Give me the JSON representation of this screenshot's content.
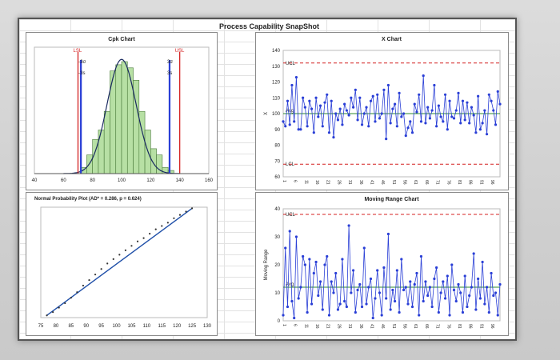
{
  "main_title": "Process Capability SnapShot",
  "colors": {
    "blue": "#2a3fd6",
    "green": "#2e8b2e",
    "red": "#d42020",
    "bar": "#b7e0a4",
    "avg": "#2e8b2e"
  },
  "chart_data": [
    {
      "type": "bar",
      "title": "Cpk Chart",
      "annotations": {
        "lsl": "LSL",
        "usl": "USL",
        "minus3sigma": "-3σ",
        "plus3sigma": "3σ",
        "minus3s": "-3s",
        "plus3s": "3s"
      },
      "xlim": [
        40,
        160
      ],
      "xticks": [
        "40",
        "60",
        "80",
        "100",
        "120",
        "140",
        "160"
      ],
      "lsl": 70,
      "usl": 140,
      "minus3sigma": 72,
      "plus3sigma": 133,
      "bin_edges": [
        72,
        76,
        80,
        84,
        88,
        92,
        96,
        100,
        104,
        108,
        112,
        116,
        120,
        124,
        128,
        132,
        136
      ],
      "bin_values": [
        2,
        6,
        11,
        14,
        20,
        33,
        35,
        36,
        34,
        30,
        20,
        14,
        8,
        6,
        2,
        1
      ],
      "normal_curve": {
        "mean": 100,
        "sd": 10
      }
    },
    {
      "type": "line",
      "title": "X Chart",
      "ylabel": "X",
      "ylim": [
        60,
        140
      ],
      "yticks": [
        "60",
        "70",
        "80",
        "90",
        "100",
        "110",
        "120",
        "130",
        "140"
      ],
      "xticks": [
        "1",
        "6",
        "11",
        "16",
        "21",
        "26",
        "31",
        "36",
        "41",
        "46",
        "51",
        "56",
        "61",
        "66",
        "71",
        "76",
        "81",
        "86",
        "91",
        "96"
      ],
      "ucl": 132,
      "avg": 100,
      "lcl": 68,
      "ucl_label": "UCL",
      "avg_label": "Avg",
      "lcl_label": "LCL",
      "values": [
        95,
        92,
        108,
        93,
        118,
        95,
        123,
        90,
        90,
        110,
        104,
        92,
        108,
        103,
        88,
        110,
        98,
        105,
        92,
        107,
        112,
        88,
        108,
        85,
        100,
        96,
        103,
        93,
        106,
        102,
        99,
        110,
        104,
        115,
        96,
        110,
        93,
        100,
        104,
        92,
        108,
        111,
        95,
        112,
        97,
        100,
        115,
        84,
        118,
        94,
        103,
        106,
        92,
        113,
        98,
        100,
        86,
        91,
        95,
        88,
        106,
        101,
        112,
        95,
        124,
        94,
        104,
        97,
        102,
        118,
        92,
        105,
        98,
        95,
        112,
        90,
        108,
        98,
        97,
        102,
        113,
        94,
        108,
        96,
        107,
        94,
        104,
        99,
        88,
        111,
        90,
        94,
        102,
        87,
        112,
        108,
        102,
        93,
        114,
        106
      ]
    },
    {
      "type": "line",
      "title": "Normal Probability Plot (AD* = 0.286, p = 0.624)",
      "xticks": [
        "75",
        "80",
        "85",
        "90",
        "95",
        "100",
        "105",
        "110",
        "115",
        "120",
        "125",
        "130"
      ],
      "x": [
        77,
        79,
        81,
        83,
        85,
        87,
        89,
        91,
        93,
        95,
        97,
        99,
        101,
        103,
        105,
        107,
        109,
        111,
        113,
        115,
        117,
        119,
        121,
        123,
        125
      ],
      "y": [
        0.02,
        0.05,
        0.09,
        0.13,
        0.18,
        0.23,
        0.29,
        0.34,
        0.39,
        0.44,
        0.49,
        0.53,
        0.57,
        0.61,
        0.65,
        0.69,
        0.72,
        0.76,
        0.8,
        0.83,
        0.86,
        0.9,
        0.93,
        0.96,
        0.99
      ]
    },
    {
      "type": "line",
      "title": "Moving Range Chart",
      "ylabel": "Moving Range",
      "ylim": [
        0,
        40
      ],
      "yticks": [
        "0",
        "10",
        "20",
        "30",
        "40"
      ],
      "xticks": [
        "1",
        "6",
        "11",
        "16",
        "21",
        "26",
        "31",
        "36",
        "41",
        "46",
        "51",
        "56",
        "61",
        "66",
        "71",
        "76",
        "81",
        "86",
        "91",
        "96"
      ],
      "ucl": 38,
      "avg": 12,
      "ucl_label": "UCL",
      "avg_label": "Avg",
      "values": [
        2,
        26,
        5,
        32,
        7,
        1,
        30,
        8,
        12,
        23,
        20,
        3,
        22,
        6,
        17,
        21,
        9,
        14,
        4,
        20,
        23,
        2,
        14,
        10,
        17,
        4,
        6,
        22,
        7,
        5,
        34,
        10,
        18,
        3,
        11,
        13,
        5,
        26,
        6,
        12,
        15,
        1,
        8,
        18,
        10,
        2,
        19,
        8,
        31,
        4,
        11,
        7,
        18,
        3,
        22,
        11,
        12,
        6,
        14,
        5,
        13,
        17,
        2,
        23,
        7,
        14,
        9,
        12,
        5,
        15,
        19,
        3,
        10,
        14,
        8,
        16,
        2,
        20,
        11,
        7,
        13,
        10,
        3,
        16,
        5,
        9,
        12,
        24,
        4,
        15,
        8,
        21,
        6,
        12,
        3,
        17,
        9,
        10,
        2,
        13
      ]
    }
  ]
}
